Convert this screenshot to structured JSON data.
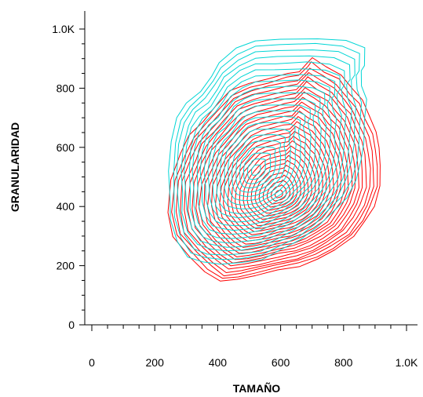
{
  "chart_data": {
    "type": "contour",
    "title": "",
    "xlabel": "TAMAÑO",
    "ylabel": "GRANULARIDAD",
    "xlim": [
      0,
      1024
    ],
    "ylim": [
      0,
      1024
    ],
    "x_ticks": [
      {
        "value": 0,
        "label": "0"
      },
      {
        "value": 200,
        "label": "200"
      },
      {
        "value": 400,
        "label": "400"
      },
      {
        "value": 600,
        "label": "600"
      },
      {
        "value": 800,
        "label": "800"
      },
      {
        "value": 1000,
        "label": "1.0K"
      }
    ],
    "y_ticks": [
      {
        "value": 0,
        "label": "0"
      },
      {
        "value": 200,
        "label": "200"
      },
      {
        "value": 400,
        "label": "400"
      },
      {
        "value": 600,
        "label": "600"
      },
      {
        "value": 800,
        "label": "800"
      },
      {
        "value": 1000,
        "label": "1.0K"
      }
    ],
    "minor_ticks_per_major": 4,
    "grid": false,
    "legend": "none",
    "series": [
      {
        "color": "#ff0000",
        "levels": 28,
        "center": [
          595,
          440
        ],
        "outer_contour": [
          [
            245,
            380
          ],
          [
            262,
            300
          ],
          [
            310,
            225
          ],
          [
            360,
            180
          ],
          [
            410,
            150
          ],
          [
            460,
            150
          ],
          [
            520,
            165
          ],
          [
            590,
            185
          ],
          [
            660,
            200
          ],
          [
            720,
            220
          ],
          [
            775,
            250
          ],
          [
            830,
            300
          ],
          [
            870,
            350
          ],
          [
            900,
            400
          ],
          [
            918,
            470
          ],
          [
            920,
            540
          ],
          [
            915,
            600
          ],
          [
            900,
            650
          ],
          [
            880,
            710
          ],
          [
            860,
            760
          ],
          [
            830,
            800
          ],
          [
            790,
            840
          ],
          [
            745,
            875
          ],
          [
            700,
            900
          ],
          [
            690,
            890
          ],
          [
            660,
            860
          ],
          [
            620,
            850
          ],
          [
            560,
            835
          ],
          [
            500,
            815
          ],
          [
            440,
            790
          ],
          [
            390,
            740
          ],
          [
            350,
            690
          ],
          [
            310,
            640
          ],
          [
            280,
            580
          ],
          [
            255,
            490
          ]
        ]
      },
      {
        "color": "#00d5d5",
        "levels": 22,
        "center": [
          520,
          520
        ],
        "outer_contour": [
          [
            255,
            360
          ],
          [
            270,
            280
          ],
          [
            305,
            230
          ],
          [
            350,
            210
          ],
          [
            410,
            205
          ],
          [
            470,
            210
          ],
          [
            540,
            225
          ],
          [
            600,
            255
          ],
          [
            660,
            290
          ],
          [
            720,
            330
          ],
          [
            770,
            380
          ],
          [
            810,
            430
          ],
          [
            840,
            490
          ],
          [
            860,
            560
          ],
          [
            870,
            620
          ],
          [
            872,
            690
          ],
          [
            870,
            760
          ],
          [
            860,
            810
          ],
          [
            852,
            855
          ],
          [
            870,
            880
          ],
          [
            870,
            940
          ],
          [
            810,
            965
          ],
          [
            720,
            972
          ],
          [
            600,
            970
          ],
          [
            520,
            958
          ],
          [
            460,
            930
          ],
          [
            405,
            885
          ],
          [
            380,
            840
          ],
          [
            345,
            790
          ],
          [
            300,
            750
          ],
          [
            270,
            700
          ],
          [
            252,
            620
          ],
          [
            245,
            520
          ],
          [
            248,
            430
          ]
        ]
      }
    ]
  }
}
